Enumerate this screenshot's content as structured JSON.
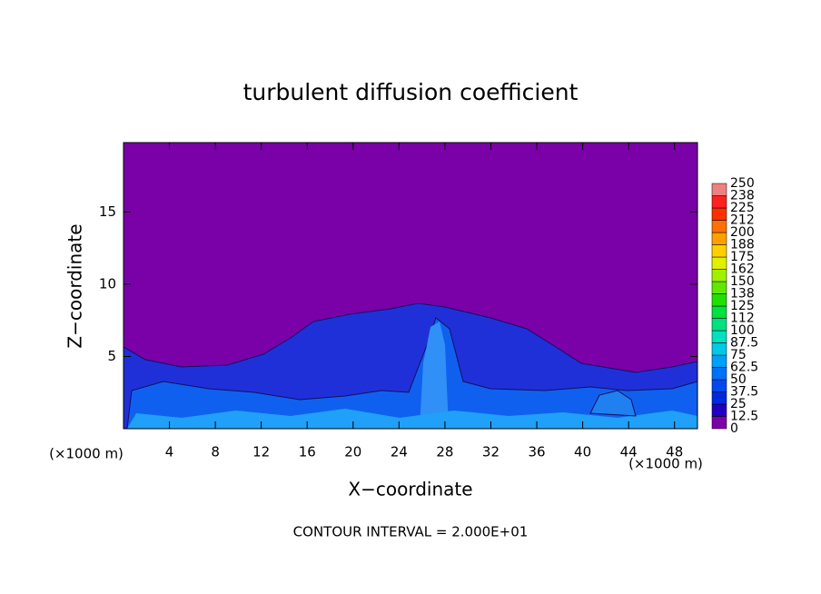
{
  "chart_data": {
    "type": "contour",
    "title": "turbulent diffusion coefficient",
    "xlabel": "X−coordinate",
    "ylabel": "Z−coordinate",
    "xunit": "(×1000 m)",
    "yunit": "(×1000 m)",
    "footer": "CONTOUR INTERVAL = 2.000E+01",
    "xlim": [
      0,
      50
    ],
    "ylim": [
      0,
      19.8
    ],
    "xticks": [
      4,
      8,
      12,
      16,
      20,
      24,
      28,
      32,
      36,
      40,
      44,
      48
    ],
    "yticks": [
      5,
      10,
      15
    ],
    "colorbar": {
      "levels": [
        0,
        12.5,
        25,
        37.5,
        50,
        62.5,
        75,
        87.5,
        100,
        {
          "value": 112.5,
          "label": "112"
        },
        125,
        {
          "value": 137.5,
          "label": "138"
        },
        150,
        {
          "value": 162.5,
          "label": "162"
        },
        175,
        {
          "value": 187.5,
          "label": "188"
        },
        200,
        {
          "value": 212.5,
          "label": "212"
        },
        225,
        {
          "value": 237.5,
          "label": "238"
        },
        250
      ],
      "colors": [
        "#7a00a8",
        "#2000c0",
        "#0028e0",
        "#0048f0",
        "#0070f8",
        "#00a0f8",
        "#00c8e8",
        "#00e0c0",
        "#00e080",
        "#00e040",
        "#20e000",
        "#60e800",
        "#a0f000",
        "#e0f000",
        "#ffd000",
        "#ffa000",
        "#ff7000",
        "#ff3000",
        "#ff2020",
        "#f08080"
      ]
    }
  }
}
